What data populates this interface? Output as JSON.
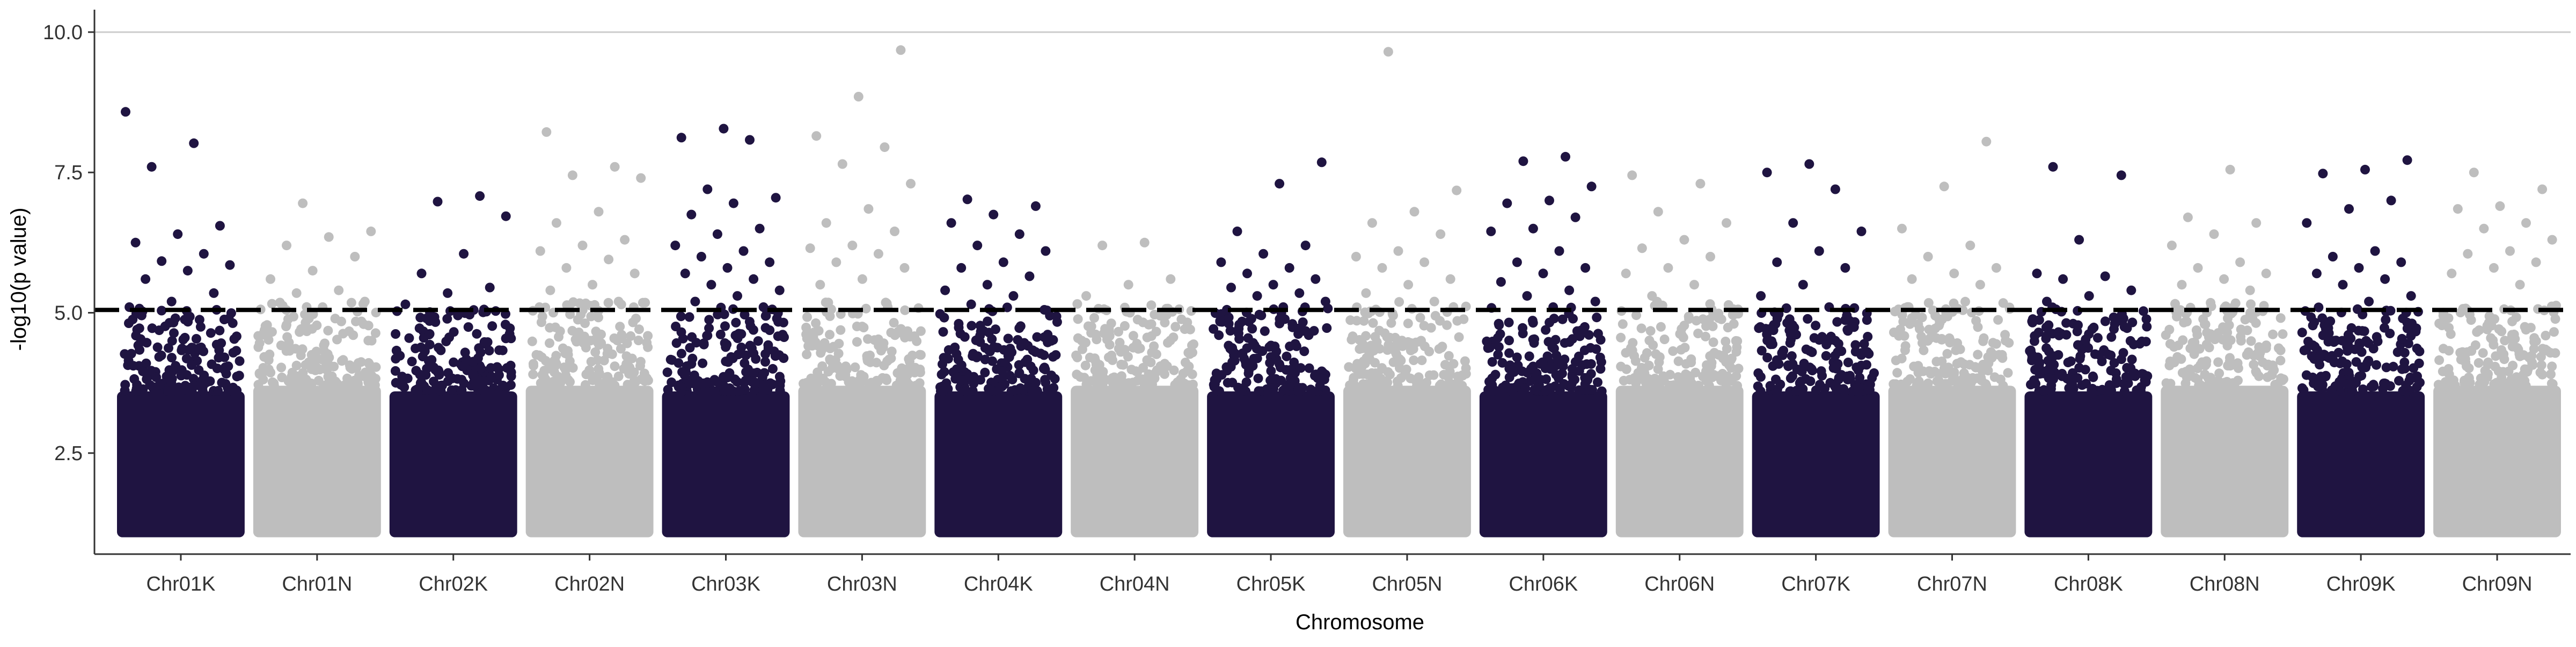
{
  "chart_data": {
    "type": "scatter",
    "subtype": "manhattan",
    "xlabel": "Chromosome",
    "ylabel": "-log10(p value)",
    "ylim": [
      0.7,
      10.4
    ],
    "yticks": [
      "2.5",
      "5.0",
      "7.5",
      "10.0"
    ],
    "yticks_values": [
      2.5,
      5.0,
      7.5,
      10.0
    ],
    "threshold": 5.05,
    "gridlines": [
      10.0
    ],
    "legend": "none",
    "colors": {
      "odd": "#1f1441",
      "even": "#bebebe",
      "threshold": "#000000"
    },
    "chromosomes": [
      {
        "name": "Chr01K",
        "peaks": [
          8.58,
          8.02,
          7.6,
          6.55,
          6.4,
          6.25,
          6.05,
          5.92,
          5.85,
          5.75,
          5.6,
          5.35,
          5.2,
          5.1
        ]
      },
      {
        "name": "Chr01N",
        "peaks": [
          6.95,
          6.45,
          6.35,
          6.2,
          6.0,
          5.75,
          5.6,
          5.4,
          5.35,
          5.2,
          5.1
        ]
      },
      {
        "name": "Chr02K",
        "peaks": [
          7.08,
          6.98,
          6.72,
          6.05,
          5.7,
          5.45,
          5.35,
          5.15,
          5.05
        ]
      },
      {
        "name": "Chr02N",
        "peaks": [
          8.22,
          7.6,
          7.45,
          7.4,
          6.8,
          6.6,
          6.3,
          6.2,
          6.1,
          5.95,
          5.8,
          5.7,
          5.5,
          5.4,
          5.2
        ]
      },
      {
        "name": "Chr03K",
        "peaks": [
          8.28,
          8.12,
          8.08,
          7.2,
          7.05,
          6.95,
          6.75,
          6.5,
          6.4,
          6.2,
          6.1,
          6.0,
          5.9,
          5.8,
          5.7,
          5.6,
          5.5,
          5.4,
          5.3,
          5.2,
          5.1
        ]
      },
      {
        "name": "Chr03N",
        "peaks": [
          9.68,
          8.85,
          8.15,
          7.95,
          7.65,
          7.3,
          6.85,
          6.6,
          6.45,
          6.2,
          6.15,
          6.05,
          5.9,
          5.8,
          5.6,
          5.5
        ]
      },
      {
        "name": "Chr04K",
        "peaks": [
          7.02,
          6.9,
          6.75,
          6.6,
          6.4,
          6.2,
          6.1,
          5.9,
          5.8,
          5.65,
          5.5,
          5.4,
          5.3,
          5.15
        ]
      },
      {
        "name": "Chr04N",
        "peaks": [
          6.25,
          6.2,
          5.6,
          5.5,
          5.3
        ]
      },
      {
        "name": "Chr05K",
        "peaks": [
          7.68,
          7.3,
          6.45,
          6.2,
          6.05,
          5.9,
          5.8,
          5.7,
          5.6,
          5.5,
          5.45,
          5.35,
          5.3,
          5.2,
          5.1
        ]
      },
      {
        "name": "Chr05N",
        "peaks": [
          9.65,
          7.18,
          6.8,
          6.6,
          6.4,
          6.1,
          6.0,
          5.9,
          5.8,
          5.6,
          5.5,
          5.35,
          5.2
        ]
      },
      {
        "name": "Chr06K",
        "peaks": [
          7.78,
          7.7,
          7.25,
          7.0,
          6.95,
          6.7,
          6.5,
          6.45,
          6.1,
          5.9,
          5.8,
          5.7,
          5.55,
          5.4,
          5.3,
          5.2,
          5.1
        ]
      },
      {
        "name": "Chr06N",
        "peaks": [
          7.45,
          7.3,
          6.8,
          6.6,
          6.3,
          6.15,
          6.0,
          5.8,
          5.7,
          5.5,
          5.3
        ]
      },
      {
        "name": "Chr07K",
        "peaks": [
          7.65,
          7.5,
          7.2,
          6.6,
          6.45,
          6.1,
          5.9,
          5.8,
          5.5,
          5.3,
          5.1
        ]
      },
      {
        "name": "Chr07N",
        "peaks": [
          8.05,
          7.25,
          6.5,
          6.2,
          6.0,
          5.8,
          5.7,
          5.6,
          5.5
        ]
      },
      {
        "name": "Chr08K",
        "peaks": [
          7.6,
          7.45,
          6.3,
          5.7,
          5.65,
          5.6,
          5.4,
          5.3,
          5.2
        ]
      },
      {
        "name": "Chr08N",
        "peaks": [
          7.55,
          6.7,
          6.6,
          6.4,
          6.2,
          5.9,
          5.8,
          5.7,
          5.6,
          5.5,
          5.4
        ]
      },
      {
        "name": "Chr09K",
        "peaks": [
          7.72,
          7.55,
          7.48,
          7.0,
          6.85,
          6.6,
          6.1,
          6.0,
          5.9,
          5.8,
          5.7,
          5.6,
          5.5,
          5.3,
          5.2
        ]
      },
      {
        "name": "Chr09N",
        "peaks": [
          7.5,
          7.2,
          6.9,
          6.85,
          6.6,
          6.5,
          6.3,
          6.1,
          6.05,
          5.9,
          5.8,
          5.7,
          5.5
        ]
      }
    ]
  }
}
